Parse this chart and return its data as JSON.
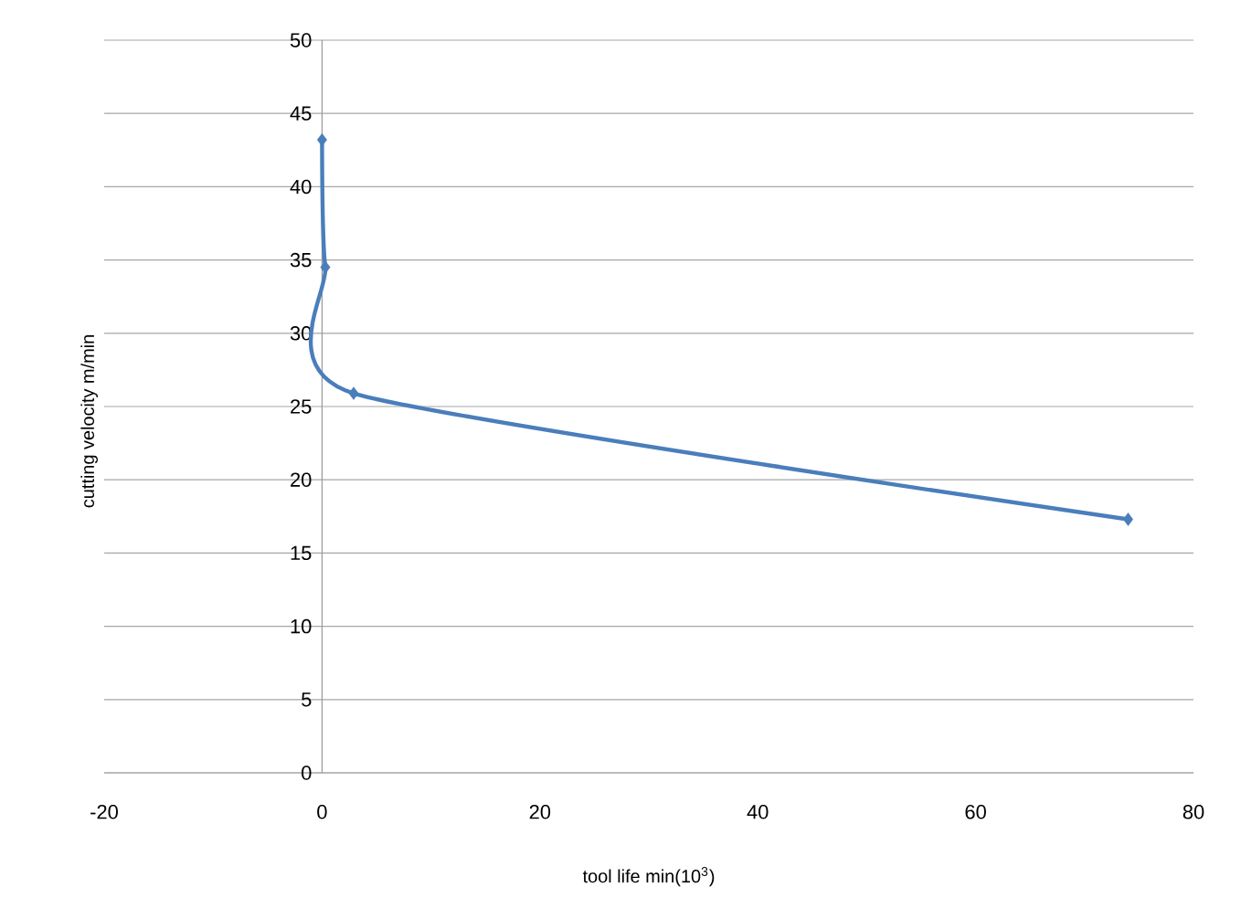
{
  "chart_data": {
    "type": "line",
    "xlabel": "tool life min(10$^{3}$)",
    "ylabel": "cutting velocity m/min",
    "x": [
      0,
      0.3,
      2.9,
      74
    ],
    "series": [
      {
        "color": "#4a7ebb",
        "values": [
          43.2,
          34.5,
          25.9,
          17.3
        ]
      }
    ],
    "xlim": [
      -20,
      80
    ],
    "xticks": [
      -20,
      0,
      20,
      40,
      60,
      80
    ],
    "ylim": [
      0,
      50
    ],
    "yticks": [
      0,
      5,
      10,
      15,
      20,
      25,
      30,
      35,
      40,
      45,
      50
    ],
    "grid": "y",
    "marker": "diamond",
    "line_style": "solid"
  }
}
